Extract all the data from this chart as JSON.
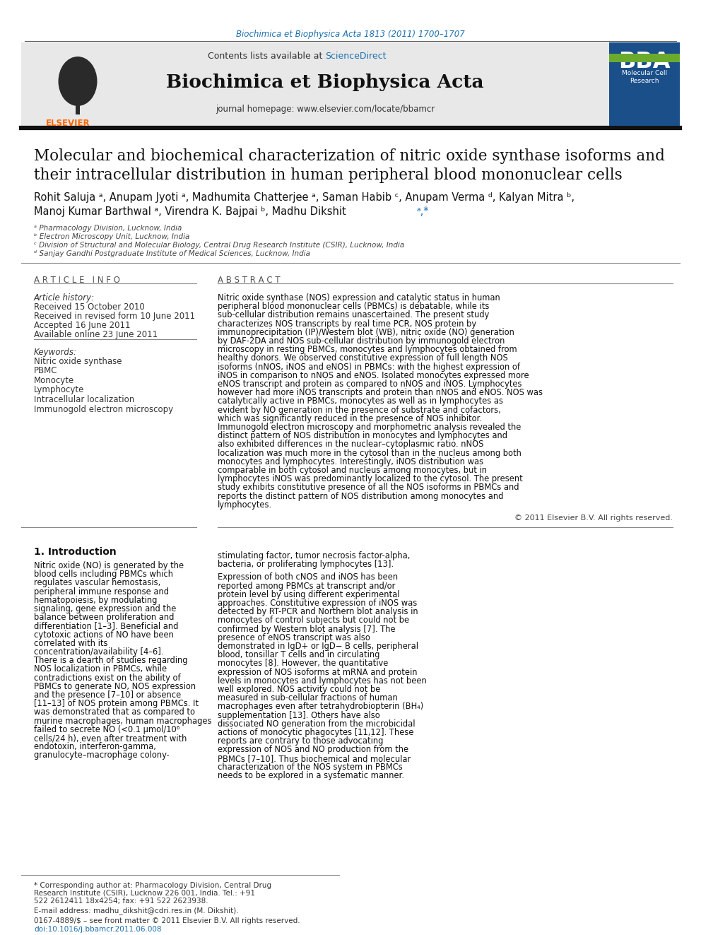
{
  "page_bg": "#ffffff",
  "top_citation": "Biochimica et Biophysica Acta 1813 (2011) 1700–1707",
  "top_citation_color": "#1a6faf",
  "journal_header_bg": "#e8e8e8",
  "sciencedirect_color": "#1a6faf",
  "journal_name": "Biochimica et Biophysica Acta",
  "journal_url": "journal homepage: www.elsevier.com/locate/bbamcr",
  "elsevier_color": "#FF6600",
  "article_title_line1": "Molecular and biochemical characterization of nitric oxide synthase isoforms and",
  "article_title_line2": "their intracellular distribution in human peripheral blood mononuclear cells",
  "author_line1": "Rohit Saluja ᵃ, Anupam Jyoti ᵃ, Madhumita Chatterjee ᵃ, Saman Habib ᶜ, Anupam Verma ᵈ, Kalyan Mitra ᵇ,",
  "author_line2a": "Manoj Kumar Barthwal ᵃ, Virendra K. Bajpai ᵇ, Madhu Dikshit",
  "author_line2b": "ᵃ,*",
  "affil_a": "ᵃ Pharmacology Division, Lucknow, India",
  "affil_b": "ᵇ Electron Microscopy Unit, Lucknow, India",
  "affil_c": "ᶜ Division of Structural and Molecular Biology, Central Drug Research Institute (CSIR), Lucknow, India",
  "affil_d": "ᵈ Sanjay Gandhi Postgraduate Institute of Medical Sciences, Lucknow, India",
  "article_info_title": "A R T I C L E   I N F O",
  "abstract_title": "A B S T R A C T",
  "article_history_label": "Article history:",
  "received1": "Received 15 October 2010",
  "received2": "Received in revised form 10 June 2011",
  "accepted": "Accepted 16 June 2011",
  "available": "Available online 23 June 2011",
  "keywords_label": "Keywords:",
  "keywords": [
    "Nitric oxide synthase",
    "PBMC",
    "Monocyte",
    "Lymphocyte",
    "Intracellular localization",
    "Immunogold electron microscopy"
  ],
  "abstract_text": "Nitric oxide synthase (NOS) expression and catalytic status in human peripheral blood mononuclear cells (PBMCs) is debatable, while its sub-cellular distribution remains unascertained. The present study characterizes NOS transcripts by real time PCR, NOS protein by immunoprecipitation (IP)/Western blot (WB), nitric oxide (NO) generation by DAF-2DA and NOS sub-cellular distribution by immunogold electron microscopy in resting PBMCs, monocytes and lymphocytes obtained from healthy donors. We observed constitutive expression of full length NOS isoforms (nNOS, iNOS and eNOS) in PBMCs: with the highest expression of iNOS in comparison to nNOS and eNOS. Isolated monocytes expressed more eNOS transcript and protein as compared to nNOS and iNOS. Lymphocytes however had more iNOS transcripts and protein than nNOS and eNOS. NOS was catalytically active in PBMCs, monocytes as well as in lymphocytes as evident by NO generation in the presence of substrate and cofactors, which was significantly reduced in the presence of NOS inhibitor. Immunogold electron microscopy and morphometric analysis revealed the distinct pattern of NOS distribution in monocytes and lymphocytes and also exhibited differences in the nuclear–cytoplasmic ratio. nNOS localization was much more in the cytosol than in the nucleus among both monocytes and lymphocytes. Interestingly, iNOS distribution was comparable in both cytosol and nucleus among monocytes, but in lymphocytes iNOS was predominantly localized to the cytosol. The present study exhibits constitutive presence of all the NOS isoforms in PBMCs and reports the distinct pattern of NOS distribution among monocytes and lymphocytes.",
  "copyright": "© 2011 Elsevier B.V. All rights reserved.",
  "intro_heading": "1. Introduction",
  "intro_col1": "Nitric oxide (NO) is generated by the blood cells including PBMCs which regulates vascular hemostasis, peripheral immune response and hematopoiesis, by modulating signaling, gene expression and the balance between proliferation and differentiation [1–3]. Beneficial and cytotoxic actions of NO have been correlated with its concentration/availability [4–6]. There is a dearth of studies regarding NOS localization in PBMCs, while contradictions exist on the ability of PBMCs to generate NO, NOS expression and the presence [7–10] or absence [11–13] of NOS protein among PBMCs. It was demonstrated that as compared to murine macrophages, human macrophages failed to secrete NO (<0.1 μmol/10⁶ cells/24 h), even after treatment with endotoxin, interferon-gamma, granulocyte–macrophage colony-",
  "intro_col2": "stimulating factor, tumor necrosis factor-alpha, bacteria, or proliferating lymphocytes [13].\n\nExpression of both cNOS and iNOS has been reported among PBMCs at transcript and/or protein level by using different experimental approaches. Constitutive expression of iNOS was detected by RT-PCR and Northern blot analysis in monocytes of control subjects but could not be confirmed by Western blot analysis [7]. The presence of eNOS transcript was also demonstrated in IgD+ or IgD− B cells, peripheral blood, tonsillar T cells and in circulating monocytes [8]. However, the quantitative expression of NOS isoforms at mRNA and protein levels in monocytes and lymphocytes has not been well explored. NOS activity could not be measured in sub-cellular fractions of human macrophages even after tetrahydrobiopterin (BH₄) supplementation [13]. Others have also dissociated NO generation from the microbicidal actions of monocytic phagocytes [11,12]. These reports are contrary to those advocating expression of NOS and NO production from the PBMCs [7–10]. Thus biochemical and molecular characterization of the NOS system in PBMCs needs to be explored in a systematic manner.",
  "footnote_corresponding": "* Corresponding author at: Pharmacology Division, Central Drug Research Institute (CSIR), Lucknow 226 001, India. Tel.: +91 522 2612411 18x4254; fax: +91 522 2623938.",
  "footnote_email": "E-mail address: madhu_dikshit@cdri.res.in (M. Dikshit).",
  "footnote_issn": "0167-4889/$ – see front matter © 2011 Elsevier B.V. All rights reserved.",
  "footnote_doi": "doi:10.1016/j.bbamcr.2011.06.008",
  "bba_blue": "#1a4f8a",
  "bba_green": "#6aab2e"
}
